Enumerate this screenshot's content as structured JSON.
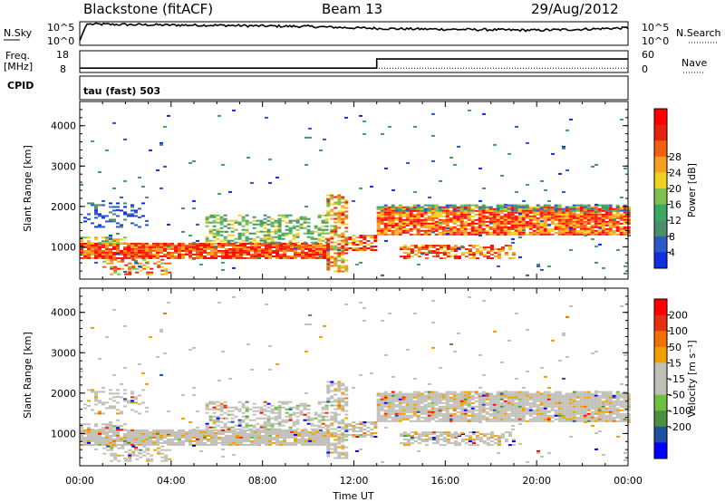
{
  "header": {
    "station": "Blackstone (fitACF)",
    "beam": "Beam 13",
    "date": "29/Aug/2012"
  },
  "top_panels": {
    "nsky_label": "N.Sky",
    "nsky_ticks": [
      "10^5",
      "10^0"
    ],
    "nsearch_label": "N.Search",
    "nsearch_ticks": [
      "10^5",
      "10^0"
    ],
    "freq_label": "Freq.",
    "freq_unit": "[MHz]",
    "freq_ticks": [
      "18",
      "8"
    ],
    "nave_label": "Nave",
    "nave_ticks": [
      "60",
      "0"
    ],
    "cpid_label": "CPID",
    "cpid_value": "tau (fast) 503"
  },
  "colors": {
    "power_scale": [
      "#1030e0",
      "#2a5ac8",
      "#4a8f6a",
      "#3aa860",
      "#80c050",
      "#f0d020",
      "#f5a020",
      "#f06010",
      "#e82010",
      "#ff0000"
    ],
    "velocity_scale": [
      "#0000ff",
      "#2050a0",
      "#4a9040",
      "#70c040",
      "#c0c0b8",
      "#c0c0b8",
      "#f0a000",
      "#f07000",
      "#e83010",
      "#ff0000"
    ]
  },
  "chart_data": [
    {
      "type": "line",
      "name": "N.Sky / N.Search",
      "x_range_hours": [
        0,
        24
      ],
      "series": [
        {
          "name": "N.Sky",
          "x": [
            0,
            0.3,
            2,
            4,
            6,
            8,
            10,
            12,
            14,
            16,
            18,
            20,
            22,
            24
          ],
          "y_level": [
            0.2,
            0.9,
            0.88,
            0.86,
            0.85,
            0.82,
            0.8,
            0.74,
            0.7,
            0.68,
            0.66,
            0.64,
            0.68,
            0.74
          ]
        }
      ]
    },
    {
      "type": "line",
      "name": "Freq / Nave",
      "x_range_hours": [
        0,
        24
      ],
      "series": [
        {
          "name": "Freq",
          "x": [
            0,
            13,
            13,
            24
          ],
          "y": [
            10,
            10,
            14.2,
            14.2
          ]
        },
        {
          "name": "Nave",
          "x": [
            0,
            24
          ],
          "y": [
            12,
            12
          ]
        }
      ]
    },
    {
      "type": "heatmap",
      "title": "Power",
      "xlabel": "Time UT",
      "ylabel": "Slant Range [km]",
      "x_ticks": [
        "00:00",
        "04:00",
        "08:00",
        "12:00",
        "16:00",
        "20:00",
        "00:00"
      ],
      "y_ticks": [
        "1000",
        "2000",
        "3000",
        "4000"
      ],
      "ylim": [
        200,
        4600
      ],
      "colorbar_label": "Power [dB]",
      "colorbar_ticks": [
        "4",
        "8",
        "12",
        "16",
        "20",
        "24",
        "28"
      ]
    },
    {
      "type": "heatmap",
      "title": "Velocity",
      "xlabel": "Time UT",
      "ylabel": "Slant Range [km]",
      "x_ticks": [
        "00:00",
        "04:00",
        "08:00",
        "12:00",
        "16:00",
        "20:00",
        "00:00"
      ],
      "y_ticks": [
        "1000",
        "2000",
        "3000",
        "4000"
      ],
      "ylim": [
        200,
        4600
      ],
      "colorbar_label": "Velocity [m s⁻¹]",
      "colorbar_ticks": [
        "200",
        "100",
        "50",
        "15",
        "-15",
        "-50",
        "-100",
        "-200"
      ]
    }
  ]
}
